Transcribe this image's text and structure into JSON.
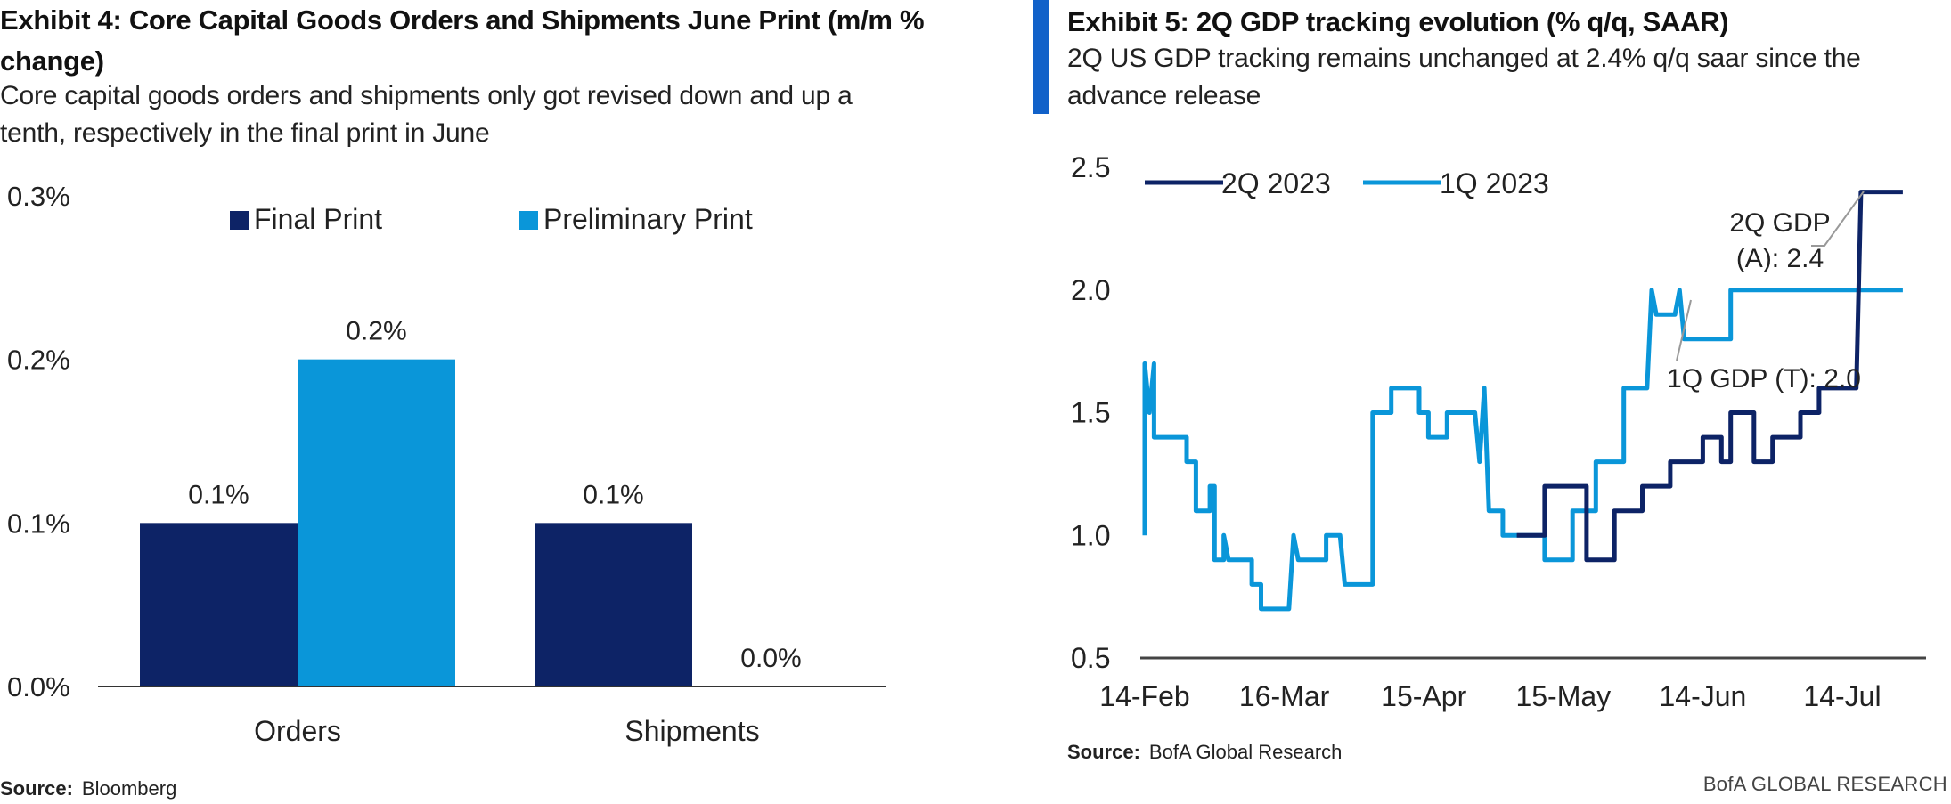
{
  "left": {
    "title": "Exhibit 4: Core Capital Goods Orders and Shipments June Print (m/m % change)",
    "subtitle": "Core capital goods orders and shipments only got revised down and up a tenth, respectively in the final print in June",
    "source_label": "Source:",
    "source_text": "Bloomberg"
  },
  "right": {
    "title": "Exhibit 5: 2Q GDP tracking evolution (% q/q, SAAR)",
    "subtitle": "2Q US GDP tracking remains unchanged at 2.4% q/q saar since the advance release",
    "source_label": "Source:",
    "source_text": "BofA Global Research",
    "brand": "BofA GLOBAL RESEARCH"
  },
  "colors": {
    "dark_navy": "#0d2366",
    "light_blue": "#0a96d9",
    "accent": "#1161c9"
  },
  "chart_data": [
    {
      "type": "bar",
      "categories": [
        "Orders",
        "Shipments"
      ],
      "series": [
        {
          "name": "Final Print",
          "values": [
            0.1,
            0.1
          ],
          "color": "#0d2366"
        },
        {
          "name": "Preliminary Print",
          "values": [
            0.2,
            0.0
          ],
          "color": "#0a96d9"
        }
      ],
      "data_labels": [
        [
          "0.1%",
          "0.1%"
        ],
        [
          "0.2%",
          "0.0%"
        ]
      ],
      "ylim": [
        0.0,
        0.3
      ],
      "yticks": [
        "0.0%",
        "0.1%",
        "0.2%",
        "0.3%"
      ],
      "ytick_values": [
        0.0,
        0.1,
        0.2,
        0.3
      ],
      "legend_position": "top",
      "grid": false
    },
    {
      "type": "line",
      "x_start_date": "2023-02-14",
      "x_end_date": "2023-07-27",
      "xticks": [
        "14-Feb",
        "16-Mar",
        "15-Apr",
        "15-May",
        "14-Jun",
        "14-Jul"
      ],
      "xtick_dates": [
        "2023-02-14",
        "2023-03-16",
        "2023-04-15",
        "2023-05-15",
        "2023-06-14",
        "2023-07-14"
      ],
      "ylim": [
        0.5,
        2.5
      ],
      "yticks": [
        "0.5",
        "1.0",
        "1.5",
        "2.0",
        "2.5"
      ],
      "ytick_values": [
        0.5,
        1.0,
        1.5,
        2.0,
        2.5
      ],
      "legend_position": "top-left",
      "grid": false,
      "series": [
        {
          "name": "2Q 2023",
          "color": "#0d2366",
          "points": [
            [
              "2023-05-05",
              1.0
            ],
            [
              "2023-05-11",
              1.0
            ],
            [
              "2023-05-11",
              1.2
            ],
            [
              "2023-05-20",
              1.2
            ],
            [
              "2023-05-20",
              0.9
            ],
            [
              "2023-05-26",
              0.9
            ],
            [
              "2023-05-26",
              1.1
            ],
            [
              "2023-06-01",
              1.1
            ],
            [
              "2023-06-01",
              1.2
            ],
            [
              "2023-06-07",
              1.2
            ],
            [
              "2023-06-07",
              1.3
            ],
            [
              "2023-06-14",
              1.3
            ],
            [
              "2023-06-14",
              1.4
            ],
            [
              "2023-06-18",
              1.4
            ],
            [
              "2023-06-18",
              1.3
            ],
            [
              "2023-06-20",
              1.3
            ],
            [
              "2023-06-20",
              1.5
            ],
            [
              "2023-06-25",
              1.5
            ],
            [
              "2023-06-25",
              1.3
            ],
            [
              "2023-06-29",
              1.3
            ],
            [
              "2023-06-29",
              1.4
            ],
            [
              "2023-07-05",
              1.4
            ],
            [
              "2023-07-05",
              1.5
            ],
            [
              "2023-07-09",
              1.5
            ],
            [
              "2023-07-09",
              1.6
            ],
            [
              "2023-07-17",
              1.6
            ],
            [
              "2023-07-18",
              2.4
            ],
            [
              "2023-07-27",
              2.4
            ]
          ]
        },
        {
          "name": "1Q 2023",
          "color": "#0a96d9",
          "points": [
            [
              "2023-02-14",
              1.0
            ],
            [
              "2023-02-14",
              1.7
            ],
            [
              "2023-02-15",
              1.5
            ],
            [
              "2023-02-16",
              1.7
            ],
            [
              "2023-02-16",
              1.4
            ],
            [
              "2023-02-23",
              1.4
            ],
            [
              "2023-02-23",
              1.3
            ],
            [
              "2023-02-25",
              1.3
            ],
            [
              "2023-02-25",
              1.1
            ],
            [
              "2023-02-28",
              1.1
            ],
            [
              "2023-02-28",
              1.2
            ],
            [
              "2023-03-01",
              1.2
            ],
            [
              "2023-03-01",
              0.9
            ],
            [
              "2023-03-03",
              0.9
            ],
            [
              "2023-03-03",
              1.0
            ],
            [
              "2023-03-04",
              0.9
            ],
            [
              "2023-03-09",
              0.9
            ],
            [
              "2023-03-09",
              0.8
            ],
            [
              "2023-03-11",
              0.8
            ],
            [
              "2023-03-11",
              0.7
            ],
            [
              "2023-03-17",
              0.7
            ],
            [
              "2023-03-18",
              1.0
            ],
            [
              "2023-03-19",
              0.9
            ],
            [
              "2023-03-25",
              0.9
            ],
            [
              "2023-03-25",
              1.0
            ],
            [
              "2023-03-28",
              1.0
            ],
            [
              "2023-03-29",
              0.8
            ],
            [
              "2023-04-04",
              0.8
            ],
            [
              "2023-04-04",
              1.5
            ],
            [
              "2023-04-08",
              1.5
            ],
            [
              "2023-04-08",
              1.6
            ],
            [
              "2023-04-14",
              1.6
            ],
            [
              "2023-04-14",
              1.5
            ],
            [
              "2023-04-16",
              1.5
            ],
            [
              "2023-04-16",
              1.4
            ],
            [
              "2023-04-20",
              1.4
            ],
            [
              "2023-04-20",
              1.5
            ],
            [
              "2023-04-26",
              1.5
            ],
            [
              "2023-04-27",
              1.3
            ],
            [
              "2023-04-28",
              1.6
            ],
            [
              "2023-04-29",
              1.1
            ],
            [
              "2023-05-02",
              1.1
            ],
            [
              "2023-05-02",
              1.0
            ],
            [
              "2023-05-11",
              1.0
            ],
            [
              "2023-05-11",
              0.9
            ],
            [
              "2023-05-17",
              0.9
            ],
            [
              "2023-05-17",
              1.1
            ],
            [
              "2023-05-22",
              1.1
            ],
            [
              "2023-05-22",
              1.3
            ],
            [
              "2023-05-28",
              1.3
            ],
            [
              "2023-05-28",
              1.6
            ],
            [
              "2023-06-02",
              1.6
            ],
            [
              "2023-06-03",
              2.0
            ],
            [
              "2023-06-04",
              1.9
            ],
            [
              "2023-06-08",
              1.9
            ],
            [
              "2023-06-09",
              2.0
            ],
            [
              "2023-06-10",
              1.8
            ],
            [
              "2023-06-20",
              1.8
            ],
            [
              "2023-06-20",
              2.0
            ],
            [
              "2023-07-27",
              2.0
            ]
          ]
        }
      ],
      "annotations": [
        {
          "line1": "2Q GDP",
          "line2": "(A): 2.4"
        },
        {
          "text": "1Q GDP (T): 2.0"
        }
      ]
    }
  ]
}
